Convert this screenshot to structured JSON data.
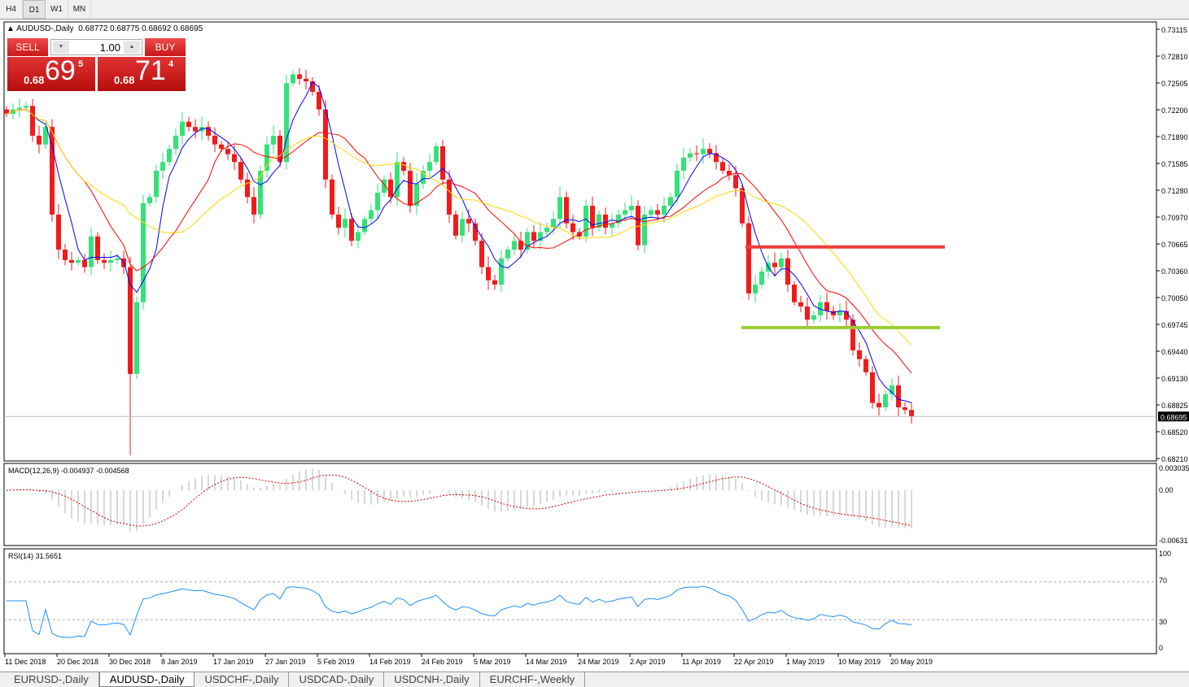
{
  "timeframes": [
    "H4",
    "D1",
    "W1",
    "MN"
  ],
  "active_timeframe": "D1",
  "chart": {
    "symbol_title": "AUDUSD-,Daily",
    "ohlc_text": "0.68772 0.68775 0.68692 0.68695"
  },
  "trade_panel": {
    "sell_label": "SELL",
    "buy_label": "BUY",
    "lot": "1.00",
    "sell_prefix": "0.68",
    "sell_big": "69",
    "sell_tick": "5",
    "buy_prefix": "0.68",
    "buy_big": "71",
    "buy_tick": "4"
  },
  "tabs": [
    {
      "label": "EURUSD-,Daily"
    },
    {
      "label": "AUDUSD-,Daily",
      "active": true
    },
    {
      "label": "USDCHF-,Daily"
    },
    {
      "label": "USDCAD-,Daily"
    },
    {
      "label": "USDCNH-,Daily"
    },
    {
      "label": "EURCHF-,Weekly"
    }
  ],
  "chart_data": {
    "type": "candlestick",
    "price_ticks": [
      "0.73115",
      "0.72810",
      "0.72505",
      "0.72200",
      "0.71890",
      "0.71585",
      "0.71280",
      "0.70970",
      "0.70665",
      "0.70360",
      "0.70050",
      "0.69745",
      "0.69440",
      "0.69130",
      "0.68825",
      "0.68520",
      "0.68210"
    ],
    "current_price": "0.68695",
    "ylim": [
      0.6821,
      0.73115
    ],
    "date_labels": [
      "11 Dec 2018",
      "20 Dec 2018",
      "30 Dec 2018",
      "8 Jan 2019",
      "17 Jan 2019",
      "27 Jan 2019",
      "5 Feb 2019",
      "14 Feb 2019",
      "24 Feb 2019",
      "5 Mar 2019",
      "14 Mar 2019",
      "24 Mar 2019",
      "2 Apr 2019",
      "11 Apr 2019",
      "22 Apr 2019",
      "1 May 2019",
      "10 May 2019",
      "20 May 2019"
    ],
    "close": [
      0.7215,
      0.722,
      0.7222,
      0.7224,
      0.719,
      0.718,
      0.72,
      0.71,
      0.706,
      0.7048,
      0.7045,
      0.7048,
      0.704,
      0.7075,
      0.7048,
      0.7045,
      0.7048,
      0.705,
      0.704,
      0.6918,
      0.7,
      0.7113,
      0.712,
      0.715,
      0.716,
      0.7175,
      0.719,
      0.7206,
      0.72,
      0.7195,
      0.72,
      0.719,
      0.718,
      0.7175,
      0.7169,
      0.716,
      0.714,
      0.712,
      0.71,
      0.715,
      0.718,
      0.719,
      0.716,
      0.725,
      0.726,
      0.7255,
      0.7252,
      0.724,
      0.722,
      0.714,
      0.71,
      0.7085,
      0.7095,
      0.707,
      0.708,
      0.7095,
      0.7105,
      0.7125,
      0.714,
      0.712,
      0.716,
      0.715,
      0.711,
      0.7135,
      0.715,
      0.716,
      0.7178,
      0.714,
      0.71,
      0.7076,
      0.7095,
      0.709,
      0.707,
      0.704,
      0.7025,
      0.702,
      0.705,
      0.706,
      0.707,
      0.706,
      0.708,
      0.707,
      0.708,
      0.7085,
      0.7095,
      0.712,
      0.709,
      0.708,
      0.7075,
      0.711,
      0.7085,
      0.71,
      0.7085,
      0.709,
      0.71,
      0.7105,
      0.711,
      0.7065,
      0.71,
      0.7105,
      0.71,
      0.711,
      0.712,
      0.715,
      0.7165,
      0.717,
      0.7169,
      0.7175,
      0.717,
      0.716,
      0.715,
      0.7145,
      0.713,
      0.709,
      0.701,
      0.702,
      0.7035,
      0.7045,
      0.704,
      0.705,
      0.702,
      0.7,
      0.6995,
      0.698,
      0.6985,
      0.7,
      0.699,
      0.6985,
      0.699,
      0.698,
      0.6945,
      0.6935,
      0.692,
      0.6885,
      0.688,
      0.6895,
      0.6905,
      0.688,
      0.6877,
      0.68695
    ],
    "levels": [
      {
        "price": 0.7063,
        "color": "#f03c3c"
      },
      {
        "price": 0.6971,
        "color": "#9acd32"
      }
    ],
    "ma_colors": [
      "#0000ff",
      "#ff0000",
      "#ffd700"
    ],
    "bull_color": "#34e27a",
    "bear_color": "#f21b1b",
    "macd": {
      "label": "MACD(12,26,9) -0.004937 -0.004568",
      "ticks": [
        "0.003035",
        "0.00",
        "-0.00631"
      ]
    },
    "rsi": {
      "label": "RSI(14) 31.5651",
      "ticks": [
        "100",
        "70",
        "30",
        "0"
      ],
      "color": "#1e90ff"
    }
  }
}
